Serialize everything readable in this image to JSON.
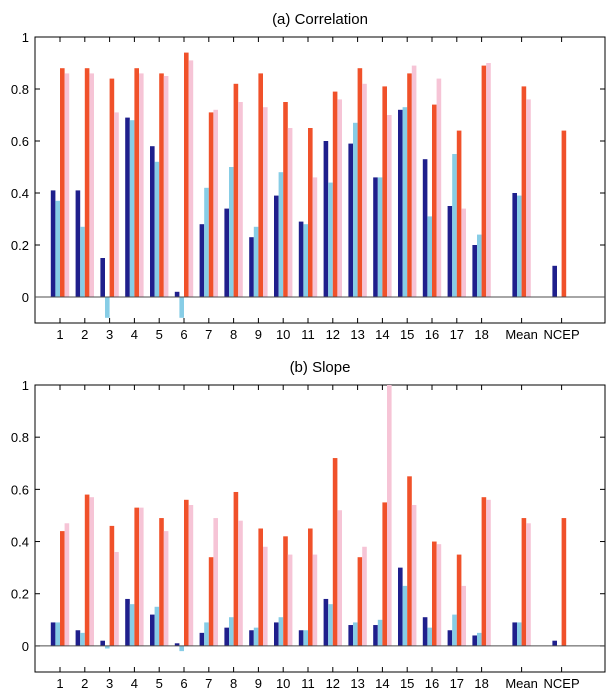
{
  "colors": {
    "series1": "#1f1f8c",
    "series2": "#87cde6",
    "series3": "#f0512a",
    "series4": "#f6c4d6"
  },
  "chart_data": [
    {
      "type": "bar",
      "title": "(a) Correlation",
      "xlabel": "",
      "ylabel": "",
      "ylim": [
        -0.1,
        1
      ],
      "yticks": [
        "-0.1",
        "0",
        "0.2",
        "0.4",
        "0.6",
        "0.8",
        "1"
      ],
      "ytick_labels": [
        "0",
        "0.2",
        "0.4",
        "0.6",
        "0.8",
        "1"
      ],
      "categories": [
        "1",
        "2",
        "3",
        "4",
        "5",
        "6",
        "7",
        "8",
        "9",
        "10",
        "11",
        "12",
        "13",
        "14",
        "15",
        "16",
        "17",
        "18",
        "Mean",
        "NCEP"
      ],
      "series": [
        {
          "values": [
            0.41,
            0.41,
            0.15,
            0.69,
            0.58,
            0.02,
            0.28,
            0.34,
            0.23,
            0.39,
            0.29,
            0.6,
            0.59,
            0.46,
            0.72,
            0.53,
            0.35,
            0.2,
            0.4,
            0.12
          ]
        },
        {
          "values": [
            0.37,
            0.27,
            -0.08,
            0.68,
            0.52,
            -0.08,
            0.42,
            0.5,
            0.27,
            0.48,
            0.28,
            0.44,
            0.67,
            0.46,
            0.73,
            0.31,
            0.55,
            0.24,
            0.39,
            null
          ]
        },
        {
          "values": [
            0.88,
            0.88,
            0.84,
            0.88,
            0.86,
            0.94,
            0.71,
            0.82,
            0.86,
            0.75,
            0.65,
            0.79,
            0.88,
            0.81,
            0.86,
            0.74,
            0.64,
            0.89,
            0.81,
            0.64
          ]
        },
        {
          "values": [
            0.86,
            0.86,
            0.71,
            0.86,
            0.85,
            0.91,
            0.72,
            0.75,
            0.73,
            0.65,
            0.46,
            0.76,
            0.82,
            0.7,
            0.89,
            0.84,
            0.34,
            0.9,
            0.76,
            null
          ]
        }
      ]
    },
    {
      "type": "bar",
      "title": "(b) Slope",
      "xlabel": "",
      "ylabel": "",
      "ylim": [
        -0.1,
        1
      ],
      "yticks": [
        "-0.1",
        "0",
        "0.2",
        "0.4",
        "0.6",
        "0.8",
        "1"
      ],
      "ytick_labels": [
        "0",
        "0.2",
        "0.4",
        "0.6",
        "0.8",
        "1"
      ],
      "categories": [
        "1",
        "2",
        "3",
        "4",
        "5",
        "6",
        "7",
        "8",
        "9",
        "10",
        "11",
        "12",
        "13",
        "14",
        "15",
        "16",
        "17",
        "18",
        "Mean",
        "NCEP"
      ],
      "series": [
        {
          "values": [
            0.09,
            0.06,
            0.02,
            0.18,
            0.12,
            0.01,
            0.05,
            0.07,
            0.06,
            0.09,
            0.06,
            0.18,
            0.08,
            0.08,
            0.3,
            0.11,
            0.06,
            0.04,
            0.09,
            0.02
          ]
        },
        {
          "values": [
            0.09,
            0.05,
            -0.01,
            0.16,
            0.15,
            -0.02,
            0.09,
            0.11,
            0.07,
            0.11,
            0.06,
            0.16,
            0.09,
            0.1,
            0.23,
            0.07,
            0.12,
            0.05,
            0.09,
            null
          ]
        },
        {
          "values": [
            0.44,
            0.58,
            0.46,
            0.53,
            0.49,
            0.56,
            0.34,
            0.59,
            0.45,
            0.42,
            0.45,
            0.72,
            0.34,
            0.55,
            0.65,
            0.4,
            0.35,
            0.57,
            0.49,
            0.49
          ]
        },
        {
          "values": [
            0.47,
            0.57,
            0.36,
            0.53,
            0.44,
            0.54,
            0.49,
            0.48,
            0.38,
            0.35,
            0.35,
            0.52,
            0.38,
            1.0,
            0.54,
            0.39,
            0.23,
            0.56,
            0.47,
            null
          ]
        }
      ]
    }
  ]
}
